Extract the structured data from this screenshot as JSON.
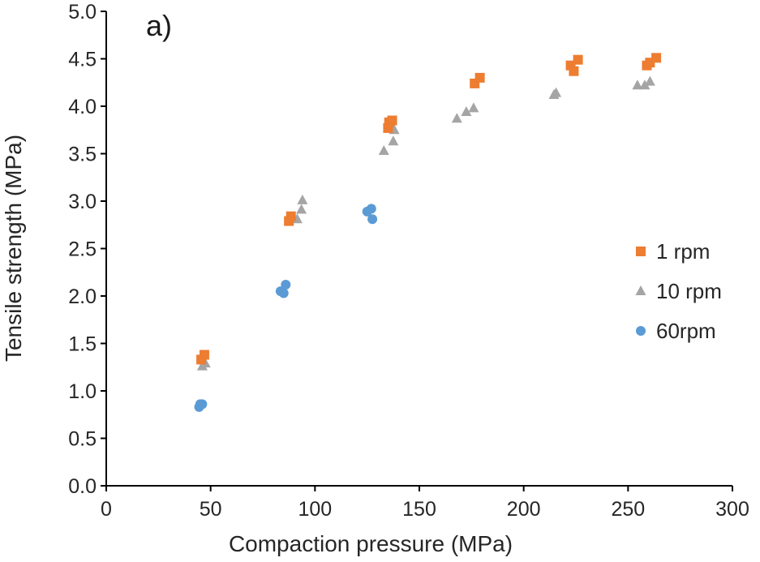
{
  "chart_data": {
    "type": "scatter",
    "panel_label": "a)",
    "xlabel": "Compaction pressure (MPa)",
    "ylabel": "Tensile strength (MPa)",
    "xlim": [
      0,
      300
    ],
    "ylim": [
      0,
      5.0
    ],
    "xticks": [
      0,
      50,
      100,
      150,
      200,
      250,
      300
    ],
    "yticks": [
      0,
      0.5,
      1.0,
      1.5,
      2.0,
      2.5,
      3.0,
      3.5,
      4.0,
      4.5,
      5.0
    ],
    "xtick_labels": [
      "0",
      "50",
      "100",
      "150",
      "200",
      "250",
      "300"
    ],
    "ytick_labels": [
      "0.0",
      "0.5",
      "1.0",
      "1.5",
      "2.0",
      "2.5",
      "3.0",
      "3.5",
      "4.0",
      "4.5",
      "5.0"
    ],
    "grid": false,
    "legend_position": "right",
    "series": [
      {
        "name": "1 rpm",
        "marker": "square",
        "color": "#ED7D31",
        "points": [
          [
            45.5,
            1.33
          ],
          [
            47.0,
            1.38
          ],
          [
            87.5,
            2.79
          ],
          [
            88.5,
            2.84
          ],
          [
            135.0,
            3.77
          ],
          [
            135.5,
            3.83
          ],
          [
            137.0,
            3.85
          ],
          [
            176.5,
            4.24
          ],
          [
            179.0,
            4.3
          ],
          [
            222.5,
            4.43
          ],
          [
            224.0,
            4.37
          ],
          [
            226.0,
            4.49
          ],
          [
            259.0,
            4.43
          ],
          [
            260.5,
            4.46
          ],
          [
            263.5,
            4.51
          ]
        ]
      },
      {
        "name": "10 rpm",
        "marker": "triangle",
        "color": "#A5A5A5",
        "points": [
          [
            46.0,
            1.26
          ],
          [
            47.5,
            1.29
          ],
          [
            91.5,
            2.81
          ],
          [
            93.5,
            2.91
          ],
          [
            94.0,
            3.01
          ],
          [
            133.0,
            3.53
          ],
          [
            137.5,
            3.63
          ],
          [
            138.0,
            3.75
          ],
          [
            168.0,
            3.87
          ],
          [
            172.5,
            3.94
          ],
          [
            176.0,
            3.98
          ],
          [
            214.5,
            4.12
          ],
          [
            215.5,
            4.14
          ],
          [
            254.5,
            4.22
          ],
          [
            258.0,
            4.22
          ],
          [
            260.5,
            4.26
          ]
        ]
      },
      {
        "name": "60rpm",
        "marker": "circle",
        "color": "#5B9BD5",
        "points": [
          [
            44.5,
            0.83
          ],
          [
            45.0,
            0.86
          ],
          [
            46.0,
            0.86
          ],
          [
            83.5,
            2.05
          ],
          [
            85.0,
            2.03
          ],
          [
            86.0,
            2.12
          ],
          [
            125.0,
            2.89
          ],
          [
            127.0,
            2.92
          ],
          [
            127.5,
            2.81
          ]
        ]
      }
    ]
  }
}
